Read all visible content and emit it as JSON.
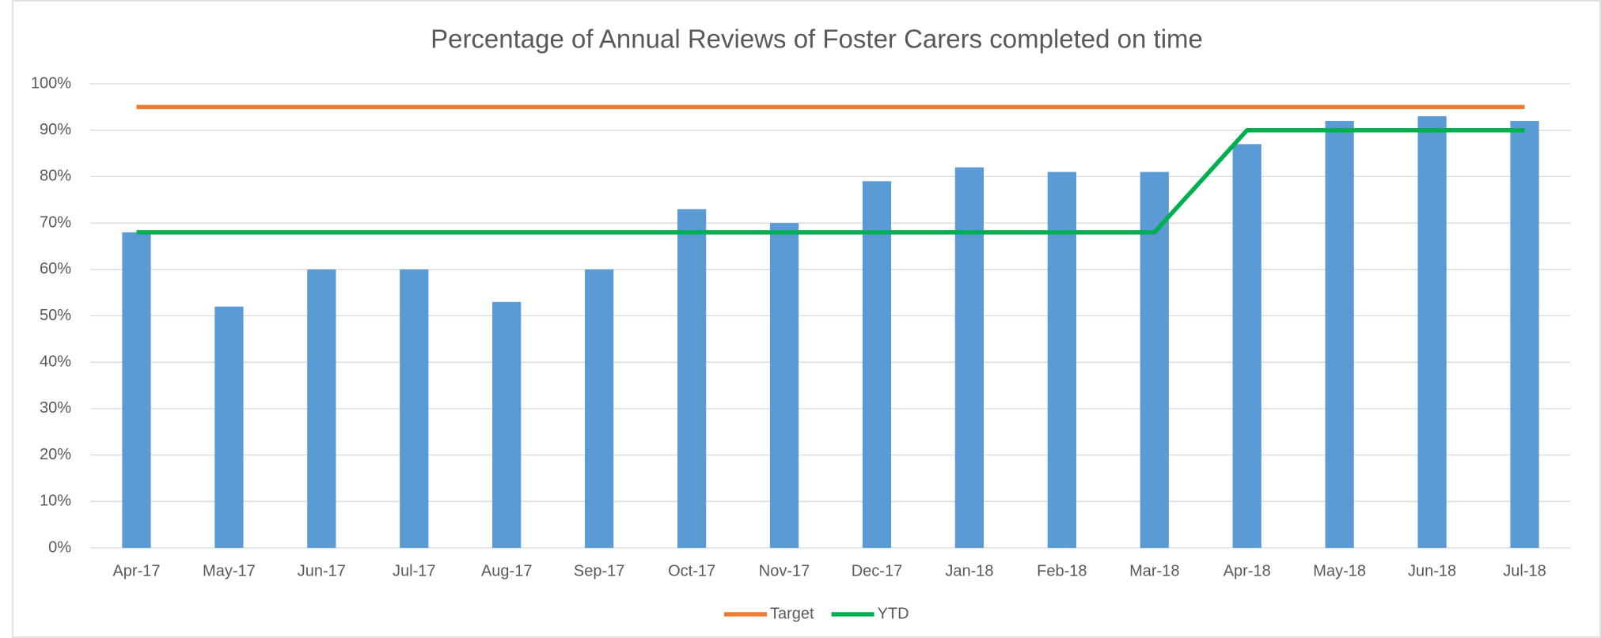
{
  "chart_data": {
    "type": "bar",
    "title": "Percentage of Annual Reviews of Foster Carers completed on time",
    "categories": [
      "Apr-17",
      "May-17",
      "Jun-17",
      "Jul-17",
      "Aug-17",
      "Sep-17",
      "Oct-17",
      "Nov-17",
      "Dec-17",
      "Jan-18",
      "Feb-18",
      "Mar-18",
      "Apr-18",
      "May-18",
      "Jun-18",
      "Jul-18"
    ],
    "series": [
      {
        "type": "bar",
        "color": "#5b9bd5",
        "values": [
          68,
          52,
          60,
          60,
          53,
          60,
          73,
          70,
          79,
          82,
          81,
          81,
          87,
          92,
          93,
          92
        ]
      },
      {
        "type": "line",
        "name": "Target",
        "color": "#ed7d31",
        "values": [
          95,
          95,
          95,
          95,
          95,
          95,
          95,
          95,
          95,
          95,
          95,
          95,
          95,
          95,
          95,
          95
        ]
      },
      {
        "type": "line",
        "name": "YTD",
        "color": "#00b050",
        "values": [
          68,
          68,
          68,
          68,
          68,
          68,
          68,
          68,
          68,
          68,
          68,
          68,
          90,
          90,
          90,
          90
        ]
      }
    ],
    "ylim": [
      0,
      100
    ],
    "yticks": [
      {
        "value": 0,
        "label": "0%"
      },
      {
        "value": 10,
        "label": "10%"
      },
      {
        "value": 20,
        "label": "20%"
      },
      {
        "value": 30,
        "label": "30%"
      },
      {
        "value": 40,
        "label": "40%"
      },
      {
        "value": 50,
        "label": "50%"
      },
      {
        "value": 60,
        "label": "60%"
      },
      {
        "value": 70,
        "label": "70%"
      },
      {
        "value": 80,
        "label": "80%"
      },
      {
        "value": 90,
        "label": "90%"
      },
      {
        "value": 100,
        "label": "100%"
      }
    ],
    "grid": true,
    "legend": "bottom"
  }
}
